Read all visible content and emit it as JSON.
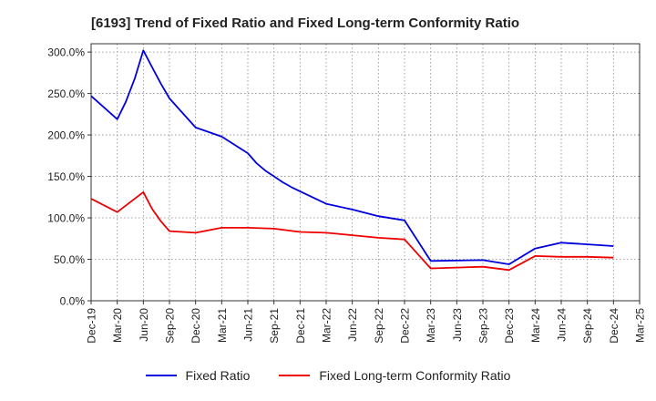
{
  "chart_data": {
    "type": "line",
    "title": "[6193]  Trend of Fixed Ratio and Fixed Long-term Conformity Ratio",
    "xlabel": "",
    "ylabel": "",
    "categories": [
      "Dec-19",
      "Mar-20",
      "Jun-20",
      "Sep-20",
      "Dec-20",
      "Mar-21",
      "Jun-21",
      "Sep-21",
      "Dec-21",
      "Mar-22",
      "Jun-22",
      "Sep-22",
      "Dec-22",
      "Mar-23",
      "Jun-23",
      "Sep-23",
      "Dec-23",
      "Mar-24",
      "Jun-24",
      "Sep-24",
      "Dec-24",
      "Mar-25"
    ],
    "y_ticks": [
      "0.0%",
      "50.0%",
      "100.0%",
      "150.0%",
      "200.0%",
      "250.0%",
      "300.0%"
    ],
    "ylim": [
      0,
      310
    ],
    "grid": true,
    "legend_position": "bottom",
    "series": [
      {
        "name": "Fixed Ratio",
        "color": "#0000dd",
        "x": [
          0,
          1,
          1.33,
          1.67,
          2,
          2.33,
          2.67,
          3,
          4,
          5,
          6,
          6.33,
          6.67,
          7,
          7.33,
          7.67,
          8,
          9,
          10,
          11,
          12,
          13,
          14,
          15,
          16,
          17,
          18,
          19,
          20
        ],
        "y": [
          247,
          219,
          240,
          268,
          302,
          282,
          262,
          244,
          209,
          198,
          178,
          166,
          157,
          150,
          143,
          137,
          132,
          117,
          110,
          102,
          97,
          48,
          48.5,
          49,
          44,
          63,
          70,
          68,
          66
        ]
      },
      {
        "name": "Fixed Long-term Conformity Ratio",
        "color": "#ee0000",
        "x": [
          0,
          1,
          2,
          2.33,
          2.67,
          3,
          4,
          5,
          6,
          7,
          8,
          9,
          10,
          11,
          12,
          13,
          14,
          15,
          16,
          17,
          18,
          19,
          20
        ],
        "y": [
          123,
          107,
          131,
          111,
          96,
          84,
          82,
          88,
          88,
          87,
          83,
          82,
          79,
          76,
          74,
          39,
          40,
          41,
          37,
          54,
          53,
          53,
          52
        ]
      }
    ]
  }
}
